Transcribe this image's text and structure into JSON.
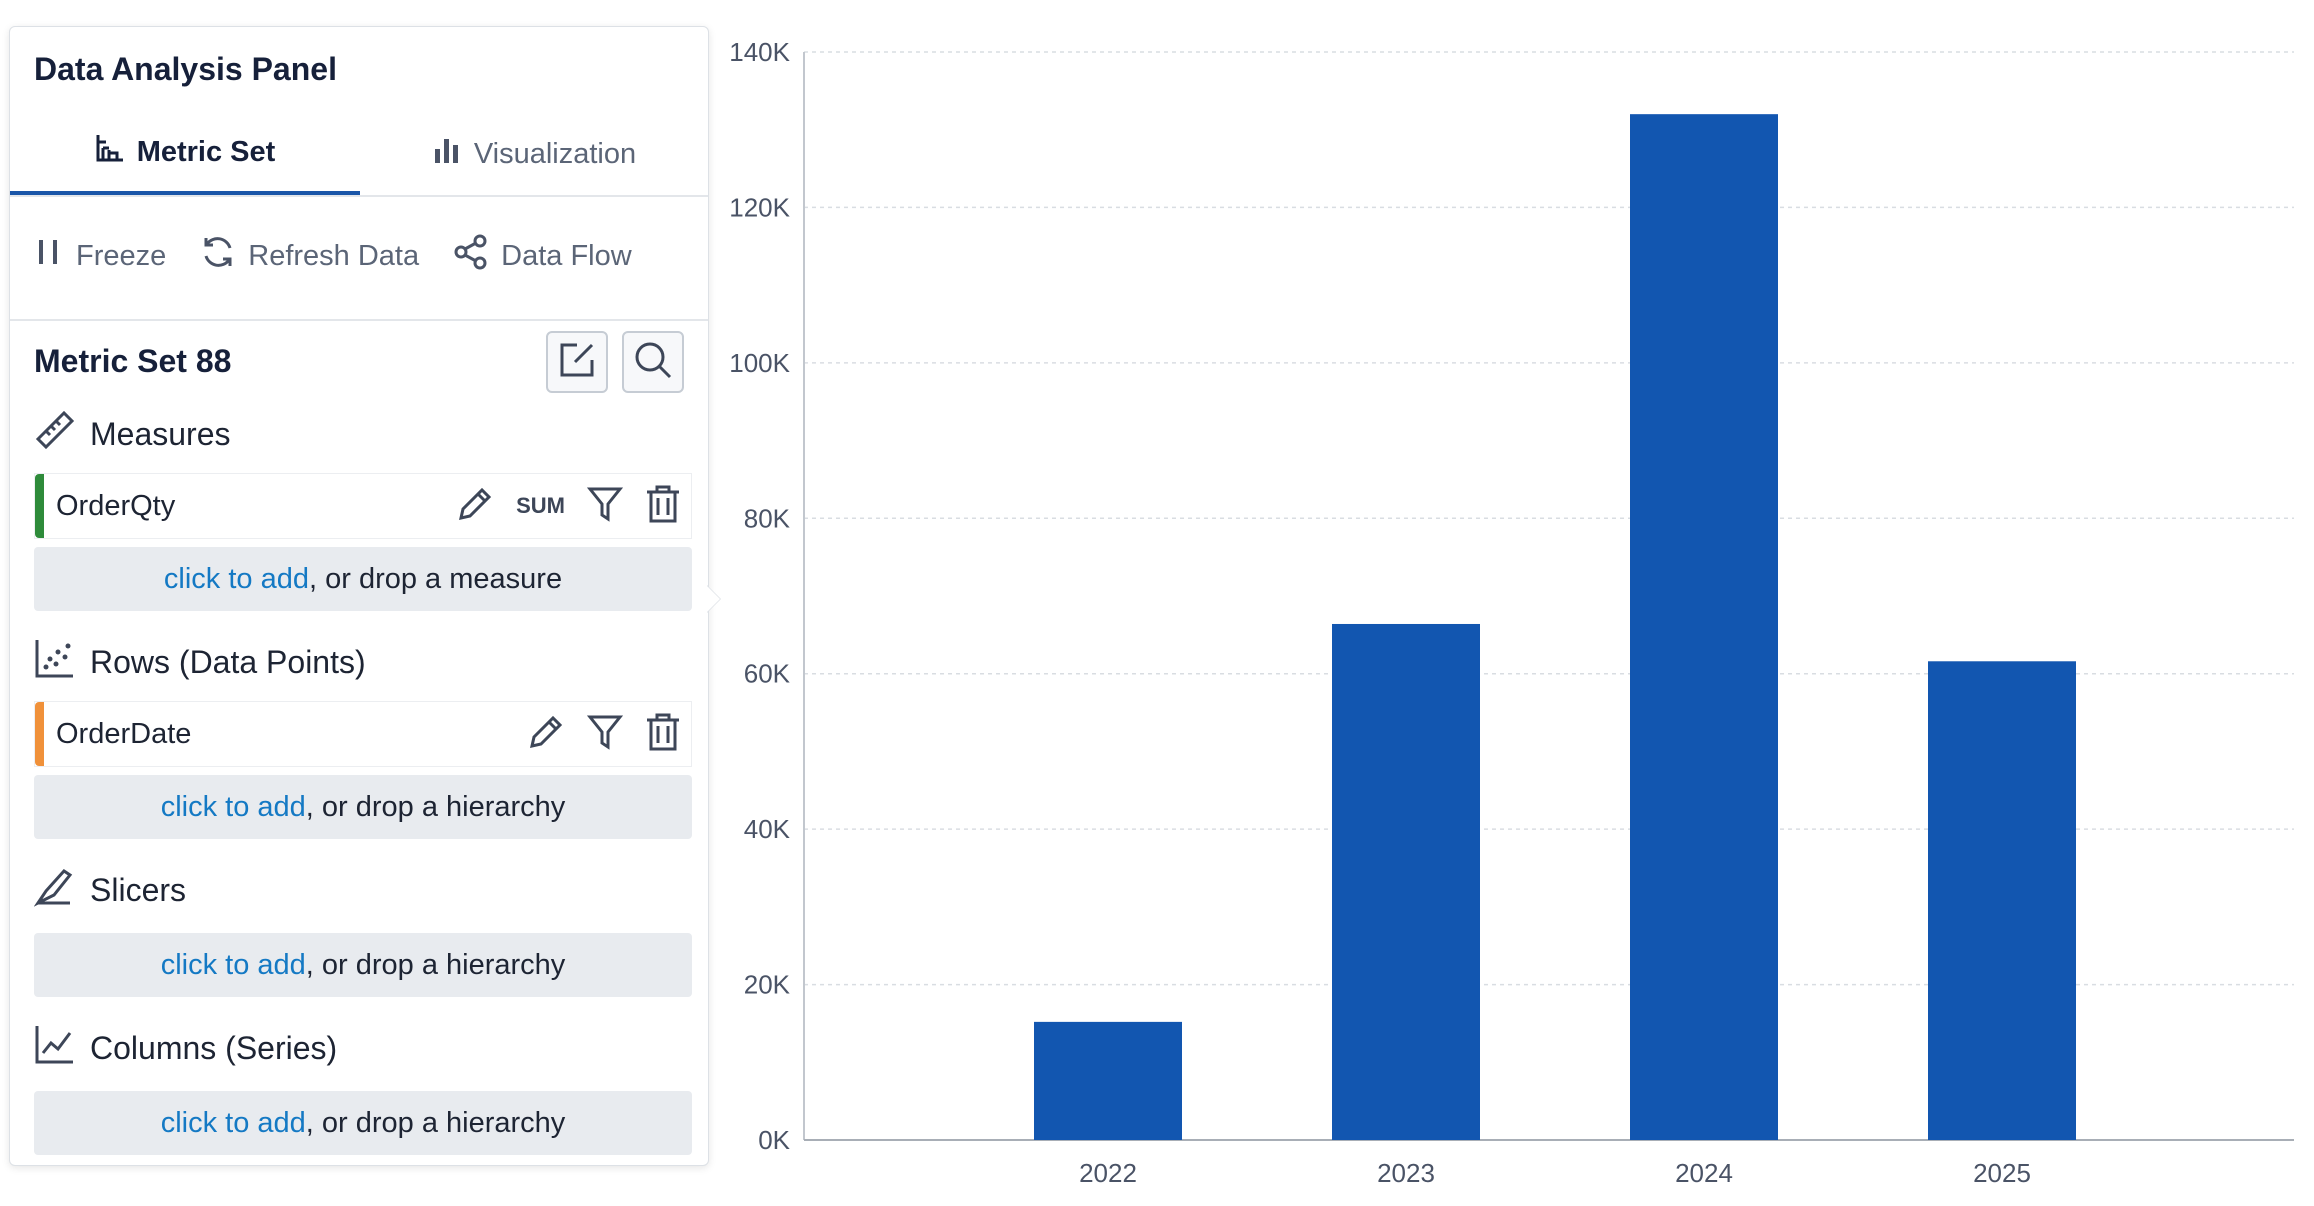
{
  "panel": {
    "title": "Data Analysis Panel",
    "tabs": [
      {
        "label": "Metric Set",
        "active": true
      },
      {
        "label": "Visualization",
        "active": false
      }
    ],
    "toolbar": {
      "freeze": "Freeze",
      "refresh": "Refresh Data",
      "flow": "Data Flow"
    },
    "metric_set_title": "Metric Set 88",
    "sections": {
      "measures": {
        "label": "Measures",
        "fields": [
          {
            "name": "OrderQty",
            "aggregation": "SUM",
            "color": "#2e8b3a"
          }
        ],
        "drop_link": "click to add",
        "drop_text": ", or drop a measure"
      },
      "rows": {
        "label": "Rows (Data Points)",
        "fields": [
          {
            "name": "OrderDate",
            "color": "#f0913a"
          }
        ],
        "drop_link": "click to add",
        "drop_text": ", or drop a hierarchy"
      },
      "slicers": {
        "label": "Slicers",
        "drop_link": "click to add",
        "drop_text": ", or drop a hierarchy"
      },
      "columns": {
        "label": "Columns (Series)",
        "drop_link": "click to add",
        "drop_text": ", or drop a hierarchy"
      }
    }
  },
  "colors": {
    "accent": "#1a56a8",
    "bar": "#1256b0",
    "link": "#1479c4"
  },
  "chart_data": {
    "type": "bar",
    "categories": [
      "2022",
      "2023",
      "2024",
      "2025"
    ],
    "series": [
      {
        "values": [
          15200,
          66400,
          132000,
          61600
        ]
      }
    ],
    "ylim": [
      0,
      140000
    ],
    "yticks": [
      "0K",
      "20K",
      "40K",
      "60K",
      "80K",
      "100K",
      "120K",
      "140K"
    ],
    "grid": true,
    "legend": "none",
    "title": "",
    "xlabel": "",
    "ylabel": ""
  }
}
